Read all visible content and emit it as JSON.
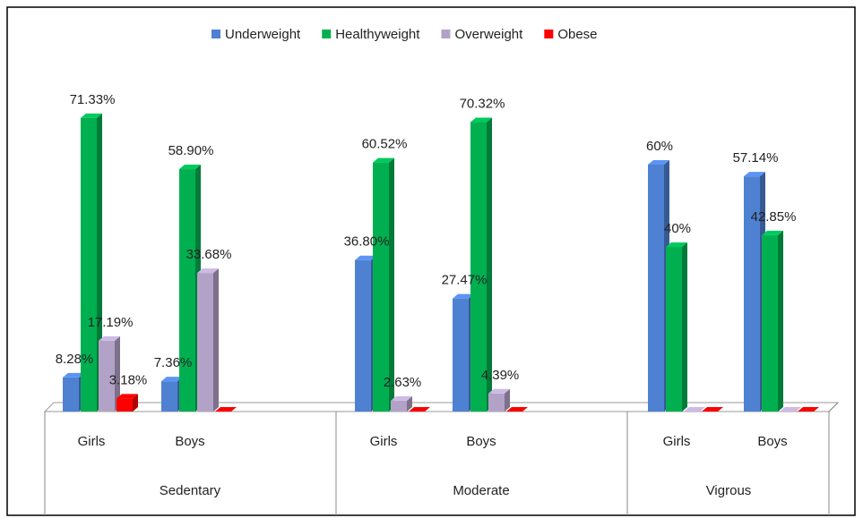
{
  "chart_data": {
    "type": "bar",
    "categories": [
      "Girls",
      "Boys",
      "Girls",
      "Boys",
      "Girls",
      "Boys"
    ],
    "groups": [
      "Sedentary",
      "Moderate",
      "Vigrous"
    ],
    "series": [
      {
        "name": "Underweight",
        "color": "#4f81d3",
        "values": [
          8.28,
          7.36,
          36.8,
          27.47,
          60,
          57.14
        ],
        "value_labels": [
          "8.28%",
          "7.36%",
          "36.80%",
          "27.47%",
          "60%",
          "57.14%"
        ]
      },
      {
        "name": "Healthyweight",
        "color": "#00b050",
        "values": [
          71.33,
          58.9,
          60.52,
          70.32,
          40,
          42.85
        ],
        "value_labels": [
          "71.33%",
          "58.90%",
          "60.52%",
          "70.32%",
          "40%",
          "42.85%"
        ]
      },
      {
        "name": "Overweight",
        "color": "#b3a2c7",
        "values": [
          17.19,
          33.68,
          2.63,
          4.39,
          0,
          0
        ],
        "value_labels": [
          "17.19%",
          "33.68%",
          "2.63%",
          "4.39%",
          null,
          null
        ]
      },
      {
        "name": "Obese",
        "color": "#ff0000",
        "values": [
          3.18,
          0,
          0,
          0,
          0,
          0
        ],
        "value_labels": [
          "3.18%",
          null,
          null,
          null,
          null,
          null
        ]
      }
    ],
    "legend": "top"
  }
}
